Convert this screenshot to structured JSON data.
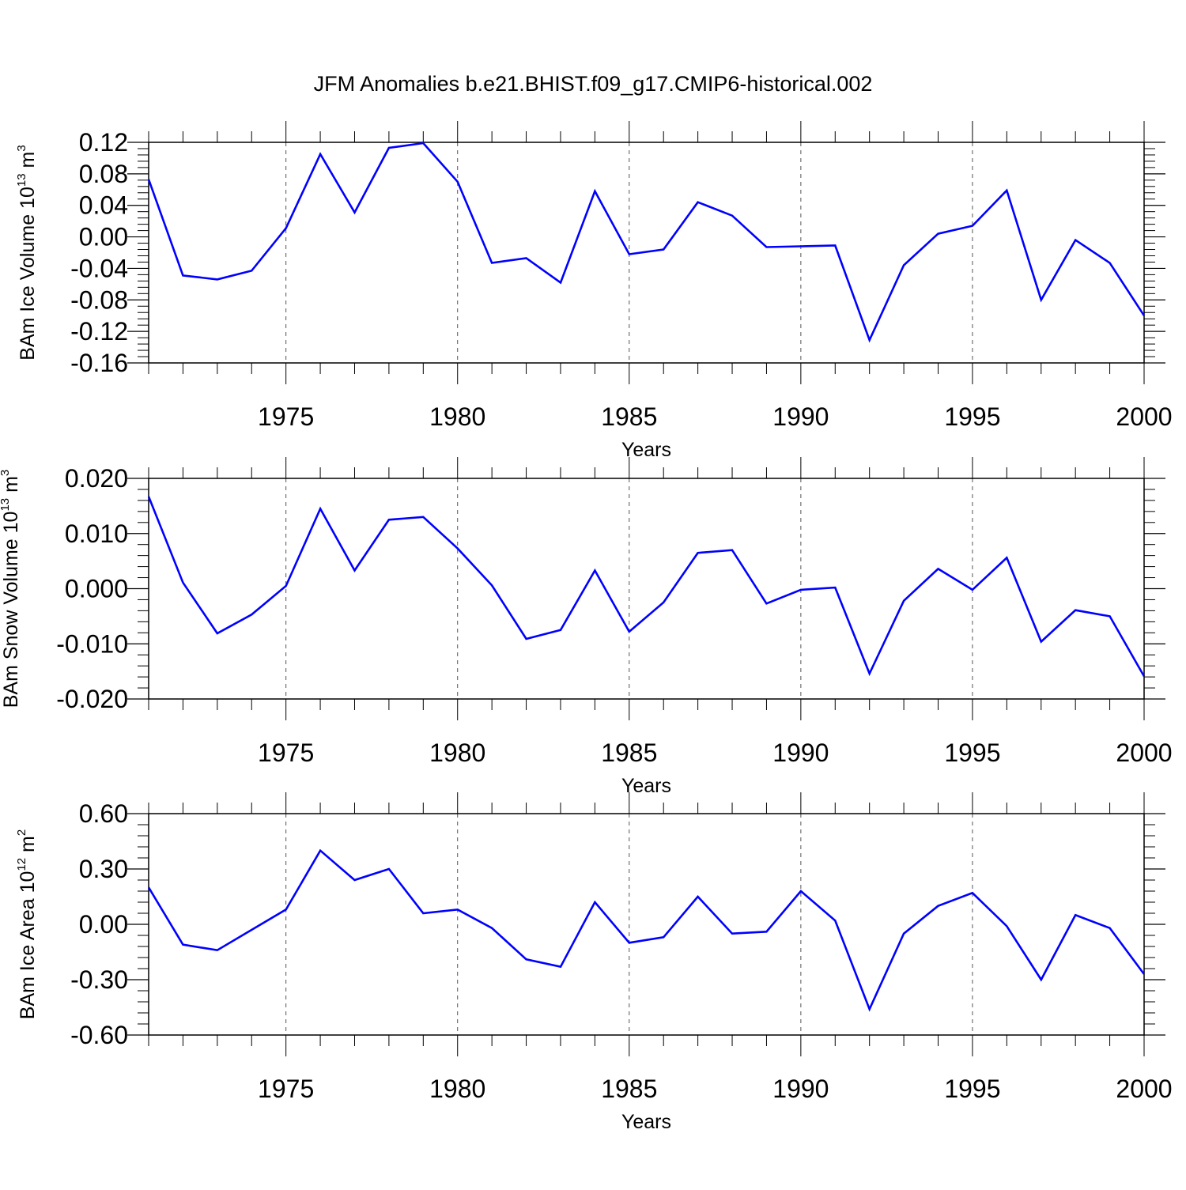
{
  "title": "JFM Anomalies b.e21.BHIST.f09_g17.CMIP6-historical.002",
  "colors": {
    "line": "#0000ff",
    "axis": "#000000",
    "grid": "#555555"
  },
  "chart_data": [
    {
      "type": "line",
      "ylabel": "BAm Ice Volume 10",
      "ylabel_exponent": "13",
      "ylabel_unit": "m",
      "ylabel_unit_exponent": "3",
      "xlabel": "Years",
      "xlim": [
        1971,
        2000
      ],
      "ylim": [
        -0.16,
        0.12
      ],
      "x_ticks": [
        "1975",
        "1980",
        "1985",
        "1990",
        "1995",
        "2000"
      ],
      "y_ticks": [
        "0.12",
        "0.08",
        "0.04",
        "0.00",
        "-0.04",
        "-0.08",
        "-0.12",
        "-0.16"
      ],
      "vertical_grid": "dashed at 1975, 1980, 1985, 1990, 1995",
      "x": [
        1971,
        1972,
        1973,
        1974,
        1975,
        1976,
        1977,
        1978,
        1979,
        1980,
        1981,
        1982,
        1983,
        1984,
        1985,
        1986,
        1987,
        1988,
        1989,
        1990,
        1991,
        1992,
        1993,
        1994,
        1995,
        1996,
        1997,
        1998,
        1999,
        2000
      ],
      "values": [
        0.073,
        -0.049,
        -0.054,
        -0.043,
        0.011,
        0.105,
        0.031,
        0.113,
        0.119,
        0.07,
        -0.033,
        -0.027,
        -0.058,
        0.058,
        -0.022,
        -0.016,
        0.044,
        0.027,
        -0.013,
        -0.012,
        -0.011,
        -0.131,
        -0.036,
        0.004,
        0.014,
        0.059,
        -0.08,
        -0.004,
        -0.033,
        -0.1
      ]
    },
    {
      "type": "line",
      "ylabel": "BAm Snow Volume 10",
      "ylabel_exponent": "13",
      "ylabel_unit": "m",
      "ylabel_unit_exponent": "3",
      "xlabel": "Years",
      "xlim": [
        1971,
        2000
      ],
      "ylim": [
        -0.02,
        0.02
      ],
      "x_ticks": [
        "1975",
        "1980",
        "1985",
        "1990",
        "1995",
        "2000"
      ],
      "y_ticks": [
        "0.020",
        "0.010",
        "0.000",
        "-0.010",
        "-0.020"
      ],
      "vertical_grid": "dashed at 1975, 1980, 1985, 1990, 1995",
      "x": [
        1971,
        1972,
        1973,
        1974,
        1975,
        1976,
        1977,
        1978,
        1979,
        1980,
        1981,
        1982,
        1983,
        1984,
        1985,
        1986,
        1987,
        1988,
        1989,
        1990,
        1991,
        1992,
        1993,
        1994,
        1995,
        1996,
        1997,
        1998,
        1999,
        2000
      ],
      "values": [
        0.0167,
        0.0011,
        -0.0081,
        -0.0047,
        0.0005,
        0.0145,
        0.0033,
        0.0125,
        0.013,
        0.0073,
        0.0006,
        -0.0091,
        -0.0075,
        0.0033,
        -0.0078,
        -0.0025,
        0.0065,
        0.007,
        -0.0027,
        -0.0002,
        0.0002,
        -0.0154,
        -0.0022,
        0.0036,
        -0.0002,
        0.0056,
        -0.0096,
        -0.0039,
        -0.005,
        -0.0159
      ]
    },
    {
      "type": "line",
      "ylabel": "BAm Ice Area 10",
      "ylabel_exponent": "12",
      "ylabel_unit": "m",
      "ylabel_unit_exponent": "2",
      "xlabel": "Years",
      "xlim": [
        1971,
        2000
      ],
      "ylim": [
        -0.6,
        0.6
      ],
      "x_ticks": [
        "1975",
        "1980",
        "1985",
        "1990",
        "1995",
        "2000"
      ],
      "y_ticks": [
        "0.60",
        "0.30",
        "0.00",
        "-0.30",
        "-0.60"
      ],
      "vertical_grid": "dashed at 1975, 1980, 1985, 1990, 1995",
      "x": [
        1971,
        1972,
        1973,
        1974,
        1975,
        1976,
        1977,
        1978,
        1979,
        1980,
        1981,
        1982,
        1983,
        1984,
        1985,
        1986,
        1987,
        1988,
        1989,
        1990,
        1991,
        1992,
        1993,
        1994,
        1995,
        1996,
        1997,
        1998,
        1999,
        2000
      ],
      "values": [
        0.2,
        -0.11,
        -0.14,
        -0.03,
        0.08,
        0.4,
        0.24,
        0.3,
        0.06,
        0.08,
        -0.02,
        -0.19,
        -0.23,
        0.12,
        -0.1,
        -0.07,
        0.15,
        -0.05,
        -0.04,
        0.18,
        0.02,
        -0.46,
        -0.05,
        0.1,
        0.17,
        -0.01,
        -0.3,
        0.05,
        -0.02,
        -0.27
      ]
    }
  ]
}
